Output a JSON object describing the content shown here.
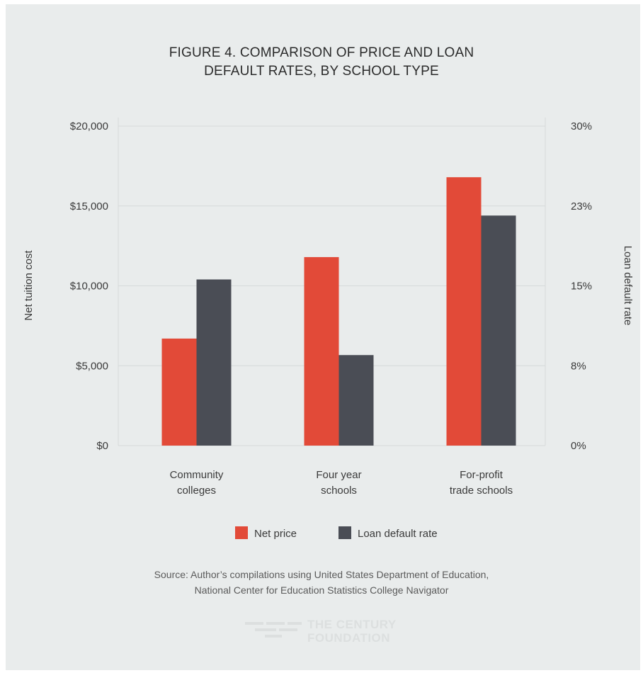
{
  "chart_data": {
    "type": "bar",
    "title_lines": [
      "FIGURE 4. COMPARISON OF PRICE AND LOAN",
      "DEFAULT RATES, BY SCHOOL TYPE"
    ],
    "categories": [
      [
        "Community",
        "colleges"
      ],
      [
        "Four year",
        "schools"
      ],
      [
        "For-profit",
        "trade schools"
      ]
    ],
    "ylabel_left": "Net tuition cost",
    "ylabel_right": "Loan default rate",
    "left_axis": {
      "ylim": [
        0,
        20000
      ],
      "ticks": [
        0,
        5000,
        10000,
        15000,
        20000
      ],
      "tick_labels": [
        "$0",
        "$5,000",
        "$10,000",
        "$15,000",
        "$20,000"
      ]
    },
    "right_axis": {
      "ylim": [
        0,
        30
      ],
      "ticks": [
        0,
        7.5,
        15,
        22.5,
        30
      ],
      "tick_labels": [
        "0%",
        "8%",
        "15%",
        "23%",
        "30%"
      ]
    },
    "series": [
      {
        "name": "Net price",
        "axis": "left",
        "color": "#e24a38",
        "values": [
          6700,
          11800,
          16800
        ]
      },
      {
        "name": "Loan default rate",
        "axis": "right",
        "color": "#4a4d55",
        "values": [
          15.6,
          8.5,
          21.6
        ]
      }
    ],
    "grid": true,
    "legend_position": "bottom"
  },
  "source_lines": [
    "Source: Author’s compilations using United States Department of Education,",
    "National Center for Education Statistics College Navigator"
  ],
  "logo": {
    "line1": "THE CENTURY",
    "line2": "FOUNDATION",
    "icon": "century-foundation-logo-icon"
  }
}
